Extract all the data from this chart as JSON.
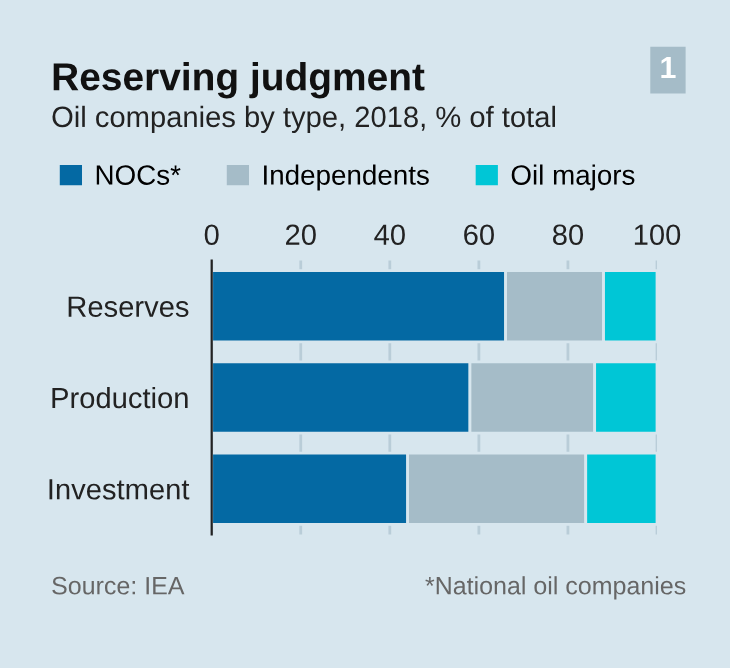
{
  "chart_data": {
    "type": "bar",
    "orientation": "horizontal",
    "stacked": true,
    "title": "Reserving judgment",
    "subtitle": "Oil companies by type, 2018, % of total",
    "categories": [
      "Reserves",
      "Production",
      "Investment"
    ],
    "series": [
      {
        "name": "NOCs*",
        "color": "#0469a3",
        "values": [
          66,
          58,
          44
        ]
      },
      {
        "name": "Independents",
        "color": "#a5bcc8",
        "values": [
          22,
          28,
          40
        ]
      },
      {
        "name": "Oil majors",
        "color": "#00c6d6",
        "values": [
          12,
          14,
          16
        ]
      }
    ],
    "xlim": [
      0,
      100
    ],
    "xticks": [
      0,
      20,
      40,
      60,
      80,
      100
    ],
    "grid": "x",
    "legend": "top",
    "annotations": [
      "Source: IEA",
      "*National oil companies",
      "1"
    ]
  }
}
